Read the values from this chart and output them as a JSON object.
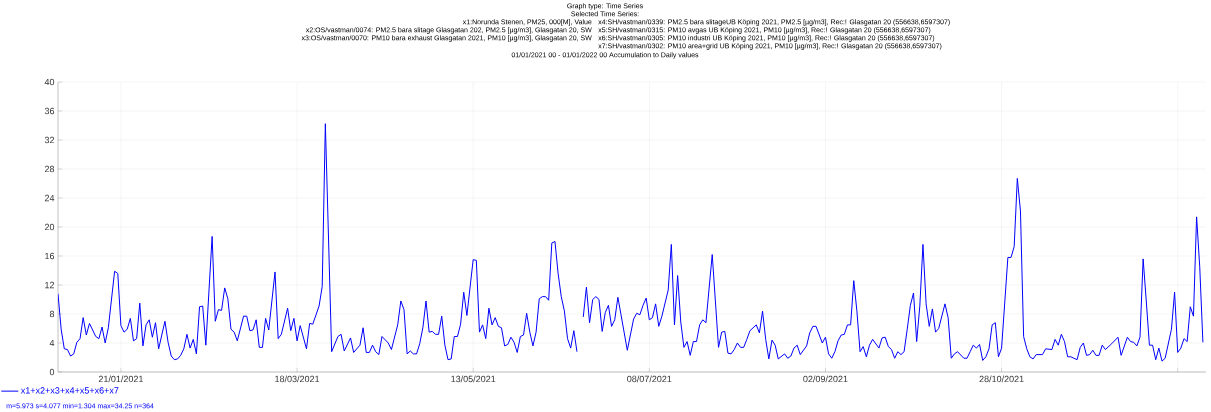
{
  "chart_data": {
    "type": "line",
    "title": "Graph type: Time Series",
    "subtitle": "Selected Time Series:",
    "annotations": [
      "x1:Norunda Stenen, PM25, 000[M], Value",
      "x2:OS/vastman/0074: PM2.5 bara slitage Glasgatan 202, PM2.5 [µg/m3], Glasgatan 20, SW",
      "x3:OS/vastman/0070: PM10 bara exhaust Glasgatan 2021, PM10 [µg/m3], Glasgatan 20, SW",
      "x4:SH/vastman/0339: PM2.5 bara slitageUB Köping 2021, PM2.5 [µg/m3], Rec:! Glasgatan 20 (556638,6597307)",
      "x5:SH/vastman/0315: PM10 avgas UB Köping 2021, PM10 [µg/m3], Rec:! Glasgatan 20 (556638,6597307)",
      "x6:SH/vastman/0305: PM10 industri UB Köping 2021, PM10 [µg/m3], Rec:! Glasgatan 20 (556638,6597307)",
      "x7:SH/vastman/0302: PM10 area+grid UB Köping 2021, PM10 [µg/m3], Rec:! Glasgatan 20 (556638,6597307)",
      "01/01/2021 00 - 01/01/2022 00  Accumulation to Daily values",
      "m=5.973 s=4.077 min=1.304 max=34.25 n=364"
    ],
    "xlim": [
      "2021-01-01",
      "2022-01-01"
    ],
    "xticks": [
      {
        "value": "2021-01-21",
        "label": "21/01/2021"
      },
      {
        "value": "2021-03-18",
        "label": "18/03/2021"
      },
      {
        "value": "2021-05-13",
        "label": "13/05/2021"
      },
      {
        "value": "2021-07-08",
        "label": "08/07/2021"
      },
      {
        "value": "2021-09-02",
        "label": "02/09/2021"
      },
      {
        "value": "2021-10-28",
        "label": "28/10/2021"
      },
      {
        "value": "2021-12-23",
        "label": null
      }
    ],
    "ylim": [
      0,
      40
    ],
    "yticks": [
      0,
      4,
      8,
      12,
      16,
      20,
      24,
      28,
      32,
      36,
      40
    ],
    "grid": true,
    "legend": "bottom left",
    "x": [
      "2021-01-01",
      "2021-01-02",
      "2021-01-03",
      "2021-01-04",
      "2021-01-05",
      "2021-01-06",
      "2021-01-07",
      "2021-01-08",
      "2021-01-09",
      "2021-01-10",
      "2021-01-11",
      "2021-01-13",
      "2021-01-14",
      "2021-01-15",
      "2021-01-16",
      "2021-01-17",
      "2021-01-19",
      "2021-01-20",
      "2021-01-21",
      "2021-01-22",
      "2021-01-23",
      "2021-01-24",
      "2021-01-25",
      "2021-01-26",
      "2021-01-27",
      "2021-01-28",
      "2021-01-29",
      "2021-01-30",
      "2021-01-31",
      "2021-02-01",
      "2021-02-02",
      "2021-02-04",
      "2021-02-05",
      "2021-02-06",
      "2021-02-07",
      "2021-02-08",
      "2021-02-09",
      "2021-02-10",
      "2021-02-11",
      "2021-02-12",
      "2021-02-13",
      "2021-02-14",
      "2021-02-15",
      "2021-02-16",
      "2021-02-17",
      "2021-02-19",
      "2021-02-20",
      "2021-02-21",
      "2021-02-22",
      "2021-02-23",
      "2021-02-24",
      "2021-02-25",
      "2021-02-26",
      "2021-02-27",
      "2021-03-01",
      "2021-03-02",
      "2021-03-03",
      "2021-03-04",
      "2021-03-05",
      "2021-03-06",
      "2021-03-07",
      "2021-03-08",
      "2021-03-09",
      "2021-03-11",
      "2021-03-12",
      "2021-03-13",
      "2021-03-15",
      "2021-03-16",
      "2021-03-17",
      "2021-03-18",
      "2021-03-19",
      "2021-03-21",
      "2021-03-22",
      "2021-03-23",
      "2021-03-25",
      "2021-03-26",
      "2021-03-27",
      "2021-03-29",
      "2021-03-31",
      "2021-04-01",
      "2021-04-02",
      "2021-04-04",
      "2021-04-05",
      "2021-04-07",
      "2021-04-08",
      "2021-04-09",
      "2021-04-10",
      "2021-04-11",
      "2021-04-12",
      "2021-04-13",
      "2021-04-14",
      "2021-04-16",
      "2021-04-17",
      "2021-04-19",
      "2021-04-20",
      "2021-04-21",
      "2021-04-22",
      "2021-04-23",
      "2021-04-24",
      "2021-04-25",
      "2021-04-26",
      "2021-04-27",
      "2021-04-28",
      "2021-04-29",
      "2021-04-30",
      "2021-05-01",
      "2021-05-02",
      "2021-05-03",
      "2021-05-04",
      "2021-05-05",
      "2021-05-06",
      "2021-05-07",
      "2021-05-08",
      "2021-05-09",
      "2021-05-10",
      "2021-05-11",
      "2021-05-13",
      "2021-05-14",
      "2021-05-15",
      "2021-05-16",
      "2021-05-17",
      "2021-05-18",
      "2021-05-19",
      "2021-05-20",
      "2021-05-21",
      "2021-05-22",
      "2021-05-23",
      "2021-05-24",
      "2021-05-25",
      "2021-05-26",
      "2021-05-27",
      "2021-05-28",
      "2021-05-29",
      "2021-05-30",
      "2021-05-31",
      "2021-06-01",
      "2021-06-02",
      "2021-06-03",
      "2021-06-04",
      "2021-06-05",
      "2021-06-06",
      "2021-06-07",
      "2021-06-08",
      "2021-06-09",
      "2021-06-10",
      "2021-06-11",
      "2021-06-12",
      "2021-06-13",
      "2021-06-14",
      "2021-06-15",
      "2021-06-16",
      "2021-06-17",
      "2021-06-18",
      "2021-06-19",
      "2021-06-20",
      "2021-06-21",
      "2021-06-22",
      "2021-06-23",
      "2021-06-24",
      "2021-06-25",
      "2021-06-26",
      "2021-06-27",
      "2021-06-28",
      "2021-06-29",
      "2021-07-01",
      "2021-07-03",
      "2021-07-04",
      "2021-07-05",
      "2021-07-06",
      "2021-07-07",
      "2021-07-08",
      "2021-07-09",
      "2021-07-10",
      "2021-07-11",
      "2021-07-12",
      "2021-07-14",
      "2021-07-15",
      "2021-07-16",
      "2021-07-17",
      "2021-07-18",
      "2021-07-19",
      "2021-07-20",
      "2021-07-21",
      "2021-07-22",
      "2021-07-23",
      "2021-07-24",
      "2021-07-25",
      "2021-07-26",
      "2021-07-28",
      "2021-07-30",
      "2021-07-31",
      "2021-08-01",
      "2021-08-02",
      "2021-08-03",
      "2021-08-04",
      "2021-08-05",
      "2021-08-06",
      "2021-08-07",
      "2021-08-08",
      "2021-08-09",
      "2021-08-11",
      "2021-08-12",
      "2021-08-13",
      "2021-08-14",
      "2021-08-15",
      "2021-08-16",
      "2021-08-17",
      "2021-08-18",
      "2021-08-20",
      "2021-08-21",
      "2021-08-22",
      "2021-08-23",
      "2021-08-24",
      "2021-08-25",
      "2021-08-27",
      "2021-08-28",
      "2021-08-29",
      "2021-08-30",
      "2021-09-01",
      "2021-09-02",
      "2021-09-03",
      "2021-09-04",
      "2021-09-05",
      "2021-09-06",
      "2021-09-07",
      "2021-09-08",
      "2021-09-09",
      "2021-09-10",
      "2021-09-11",
      "2021-09-12",
      "2021-09-13",
      "2021-09-14",
      "2021-09-15",
      "2021-09-16",
      "2021-09-17",
      "2021-09-19",
      "2021-09-20",
      "2021-09-21",
      "2021-09-22",
      "2021-09-23",
      "2021-09-24",
      "2021-09-25",
      "2021-09-26",
      "2021-09-27",
      "2021-09-28",
      "2021-09-29",
      "2021-09-30",
      "2021-10-01",
      "2021-10-02",
      "2021-10-03",
      "2021-10-04",
      "2021-10-05",
      "2021-10-06",
      "2021-10-07",
      "2021-10-08",
      "2021-10-10",
      "2021-10-11",
      "2021-10-12",
      "2021-10-13",
      "2021-10-14",
      "2021-10-16",
      "2021-10-17",
      "2021-10-18",
      "2021-10-19",
      "2021-10-20",
      "2021-10-21",
      "2021-10-22",
      "2021-10-23",
      "2021-10-24",
      "2021-10-25",
      "2021-10-26",
      "2021-10-27",
      "2021-10-28",
      "2021-10-30",
      "2021-10-31",
      "2021-11-01",
      "2021-11-02",
      "2021-11-03",
      "2021-11-04",
      "2021-11-05",
      "2021-11-06",
      "2021-11-07",
      "2021-11-08",
      "2021-11-10",
      "2021-11-11",
      "2021-11-13",
      "2021-11-14",
      "2021-11-15",
      "2021-11-16",
      "2021-11-17",
      "2021-11-18",
      "2021-11-19",
      "2021-11-21",
      "2021-11-22",
      "2021-11-23",
      "2021-11-24",
      "2021-11-25",
      "2021-11-26",
      "2021-11-27",
      "2021-11-28",
      "2021-11-29",
      "2021-11-30",
      "2021-12-02",
      "2021-12-04",
      "2021-12-05",
      "2021-12-07",
      "2021-12-08",
      "2021-12-09",
      "2021-12-10",
      "2021-12-11",
      "2021-12-12",
      "2021-12-13",
      "2021-12-14",
      "2021-12-15",
      "2021-12-16",
      "2021-12-17",
      "2021-12-18",
      "2021-12-19",
      "2021-12-21",
      "2021-12-22",
      "2021-12-23",
      "2021-12-24",
      "2021-12-25",
      "2021-12-26",
      "2021-12-27",
      "2021-12-28",
      "2021-12-29",
      "2021-12-30",
      "2021-12-31"
    ],
    "series": [
      {
        "name": "x1+x2+x3+x4+x5+x6+x7",
        "color": "#0000ff",
        "values": [
          10.8,
          5.9,
          3.2,
          3.1,
          2.2,
          2.5,
          4.1,
          4.6,
          7.5,
          5.1,
          6.7,
          4.9,
          4.6,
          6.2,
          4.0,
          6.1,
          13.9,
          13.6,
          6.4,
          5.5,
          5.9,
          7.4,
          4.3,
          4.6,
          9.5,
          3.6,
          6.5,
          7.2,
          4.8,
          6.8,
          3.2,
          7.0,
          4.1,
          2.2,
          1.7,
          1.8,
          2.3,
          3.2,
          5.2,
          3.3,
          4.5,
          2.5,
          9.0,
          9.1,
          3.7,
          18.7,
          7.0,
          8.6,
          8.5,
          11.6,
          10.1,
          5.9,
          5.5,
          4.3,
          7.7,
          7.7,
          5.7,
          5.8,
          7.2,
          3.4,
          3.4,
          7.4,
          5.8,
          13.8,
          4.6,
          5.2,
          8.8,
          5.7,
          7.4,
          4.3,
          6.4,
          3.2,
          6.7,
          6.6,
          9.1,
          11.8,
          34.25,
          2.8,
          4.9,
          5.2,
          2.9,
          4.7,
          2.7,
          3.7,
          6.1,
          2.7,
          2.7,
          3.7,
          2.8,
          2.4,
          4.9,
          4.0,
          3.1,
          6.5,
          9.8,
          8.6,
          2.5,
          2.9,
          2.5,
          2.5,
          3.9,
          6.1,
          9.8,
          5.5,
          5.6,
          5.2,
          5.2,
          7.7,
          3.7,
          1.7,
          1.8,
          4.9,
          4.9,
          6.6,
          11.0,
          7.8,
          15.5,
          15.4,
          5.5,
          6.5,
          4.6,
          8.8,
          6.5,
          7.5,
          6.3,
          6.1,
          3.6,
          3.8,
          4.8,
          4.1,
          2.7,
          4.9,
          5.1,
          8.1,
          5.5,
          3.6,
          5.5,
          10.1,
          10.4,
          10.4,
          9.9,
          17.8,
          18.0,
          13.6,
          10.4,
          8.4,
          4.6,
          3.3,
          5.7,
          2.8,
          null,
          7.6,
          11.7,
          6.8,
          10.0,
          10.4,
          10.0,
          5.6,
          8.2,
          9.2,
          6.3,
          7.2,
          10.3,
          7.9,
          3.0,
          7.3,
          8.1,
          7.9,
          9.2,
          10.2,
          7.2,
          7.5,
          9.4,
          6.3,
          7.7,
          11.3,
          17.6,
          6.5,
          13.3,
          6.9,
          3.4,
          4.2,
          2.3,
          4.2,
          4.2,
          6.5,
          7.2,
          6.8,
          16.2,
          3.4,
          5.5,
          5.6,
          2.6,
          2.5,
          3.1,
          4.0,
          3.4,
          3.4,
          4.5,
          5.7,
          6.5,
          5.4,
          8.4,
          4.5,
          1.8,
          4.4,
          3.7,
          1.8,
          2.5,
          1.9,
          2.2,
          3.3,
          3.7,
          2.4,
          3.6,
          5.4,
          6.3,
          6.3,
          4.0,
          4.8,
          2.5,
          1.9,
          2.8,
          4.3,
          5.1,
          5.2,
          6.5,
          6.5,
          12.6,
          8.4,
          2.8,
          3.5,
          2.1,
          3.7,
          4.5,
          3.3,
          4.7,
          4.8,
          3.5,
          3.1,
          1.9,
          2.8,
          2.4,
          2.8,
          5.9,
          9.2,
          10.9,
          4.2,
          9.1,
          17.6,
          9.4,
          6.3,
          8.7,
          5.5,
          6.0,
          9.4,
          7.5,
          1.9,
          2.5,
          2.8,
          1.9,
          1.9,
          2.8,
          3.7,
          3.3,
          3.8,
          1.6,
          2.1,
          3.2,
          6.5,
          6.8,
          2.1,
          3.3,
          15.8,
          15.8,
          17.3,
          26.7,
          22.2,
          4.9,
          3.2,
          2.1,
          1.8,
          2.4,
          2.4,
          3.2,
          3.1,
          4.5,
          3.7,
          5.2,
          4.2,
          2.1,
          2.1,
          1.7,
          3.4,
          4.0,
          2.3,
          2.4,
          3.0,
          2.3,
          2.3,
          3.7,
          3.1,
          3.9,
          4.8,
          2.3,
          4.8,
          4.2,
          4.1,
          3.6,
          4.8,
          15.6,
          9.8,
          3.7,
          3.7,
          1.7,
          3.3,
          1.5,
          1.9,
          5.9,
          11.0,
          2.7,
          3.3,
          4.6,
          4.2,
          9.0,
          7.7,
          21.4,
          14.5,
          4.1
        ]
      }
    ]
  }
}
